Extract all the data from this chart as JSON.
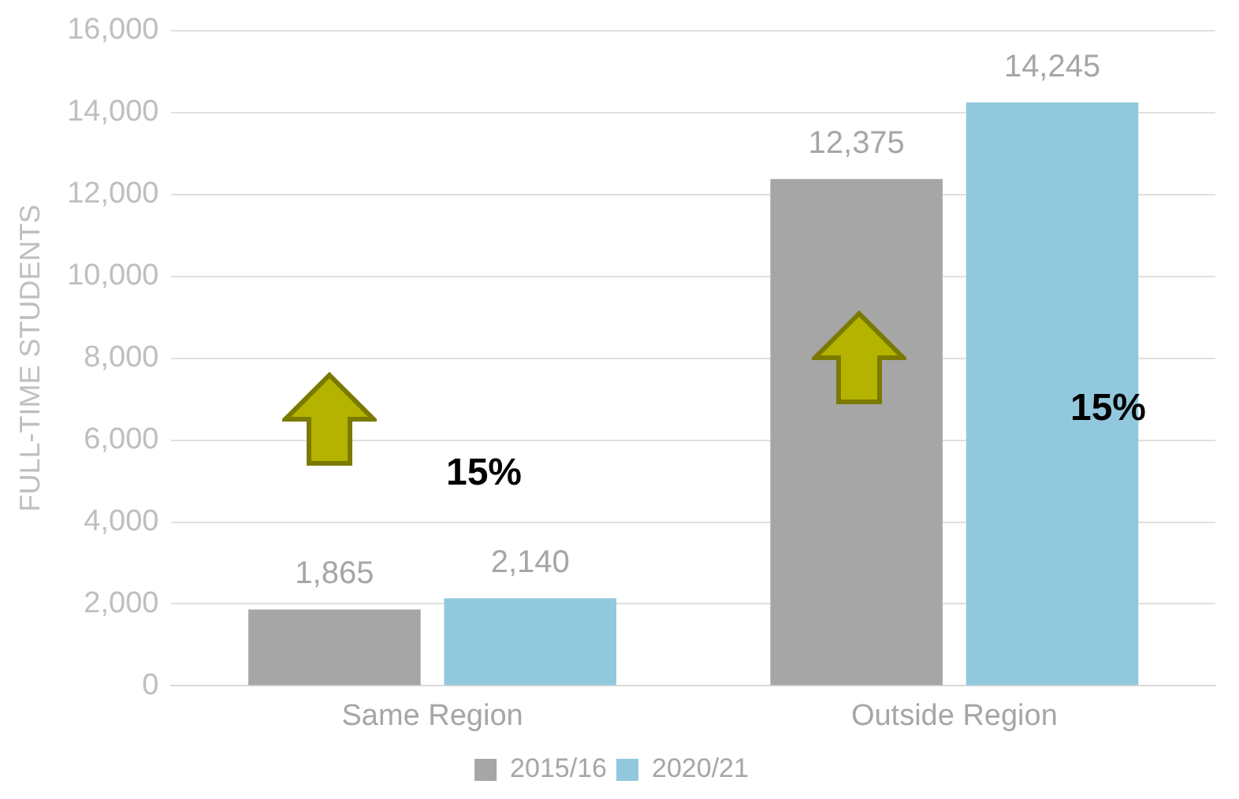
{
  "chart_data": {
    "type": "bar",
    "ylabel": "FULL-TIME STUDENTS",
    "categories": [
      "Same Region",
      "Outside Region"
    ],
    "series": [
      {
        "name": "2015/16",
        "color": "#a6a6a6",
        "values": [
          1865,
          12375
        ],
        "value_labels": [
          "1,865",
          "12,375"
        ]
      },
      {
        "name": "2020/21",
        "color": "#92c8dd",
        "values": [
          2140,
          14245
        ],
        "value_labels": [
          "2,140",
          "14,245"
        ]
      }
    ],
    "ylim": [
      0,
      16000
    ],
    "yticks": [
      {
        "value": 0,
        "label": "0"
      },
      {
        "value": 2000,
        "label": "2,000"
      },
      {
        "value": 4000,
        "label": "4,000"
      },
      {
        "value": 6000,
        "label": "6,000"
      },
      {
        "value": 8000,
        "label": "8,000"
      },
      {
        "value": 10000,
        "label": "10,000"
      },
      {
        "value": 12000,
        "label": "12,000"
      },
      {
        "value": 14000,
        "label": "14,000"
      },
      {
        "value": 16000,
        "label": "16,000"
      }
    ],
    "grid": "y",
    "legend": "bottom",
    "annotations": [
      "15%",
      "15%"
    ]
  }
}
